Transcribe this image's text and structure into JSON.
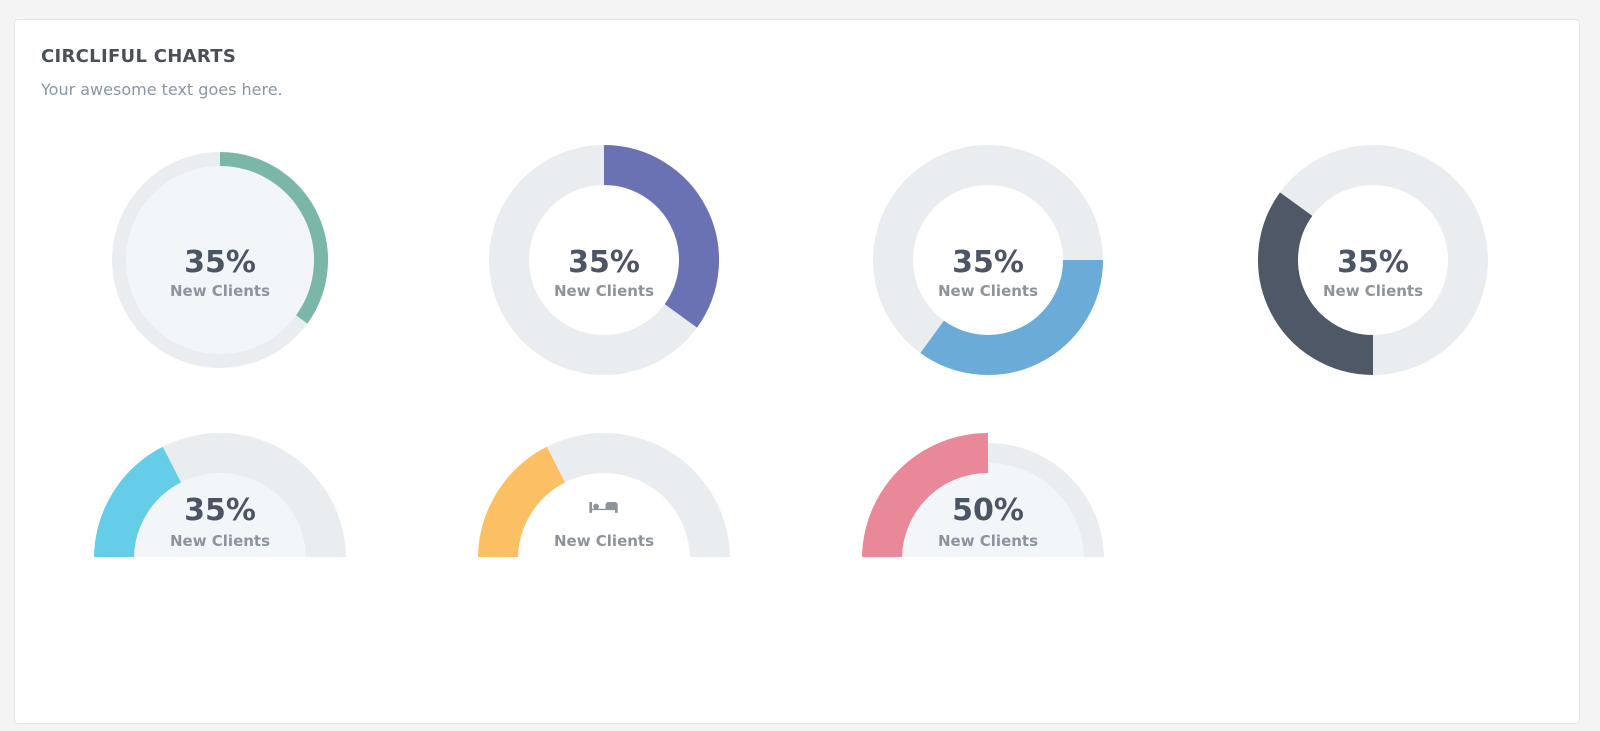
{
  "header": {
    "title": "CIRCLIFUL CHARTS",
    "subtitle": "Your awesome text goes here."
  },
  "colors": {
    "track": "#eaedf0",
    "inner_fill": "#f3f6f9",
    "text_value": "#4b5566",
    "text_label": "#8e949c"
  },
  "chart_data": [
    {
      "type": "pie",
      "style": "ring-thin-filled",
      "value_percent": 35,
      "value_text": "35%",
      "label": "New Clients",
      "color": "#7bb7a9"
    },
    {
      "type": "pie",
      "style": "ring-thick",
      "value_percent": 35,
      "value_text": "35%",
      "label": "New Clients",
      "color": "#6a72b4"
    },
    {
      "type": "pie",
      "style": "ring-thick",
      "start": "right",
      "value_percent": 35,
      "value_text": "35%",
      "label": "New Clients",
      "color": "#6aabd8"
    },
    {
      "type": "pie",
      "style": "ring-thick",
      "start": "bottom",
      "value_percent": 35,
      "value_text": "35%",
      "label": "New Clients",
      "color": "#4e5866"
    },
    {
      "type": "pie",
      "style": "half-gauge-filled",
      "value_percent": 35,
      "value_text": "35%",
      "label": "New Clients",
      "color": "#66cde8"
    },
    {
      "type": "pie",
      "style": "half-gauge",
      "value_percent": 35,
      "value_text": "",
      "icon": "bed-icon",
      "label": "New Clients",
      "color": "#fbc063"
    },
    {
      "type": "pie",
      "style": "half-gauge-filled",
      "value_percent": 50,
      "value_text": "50%",
      "label": "New Clients",
      "color": "#e88898"
    }
  ]
}
